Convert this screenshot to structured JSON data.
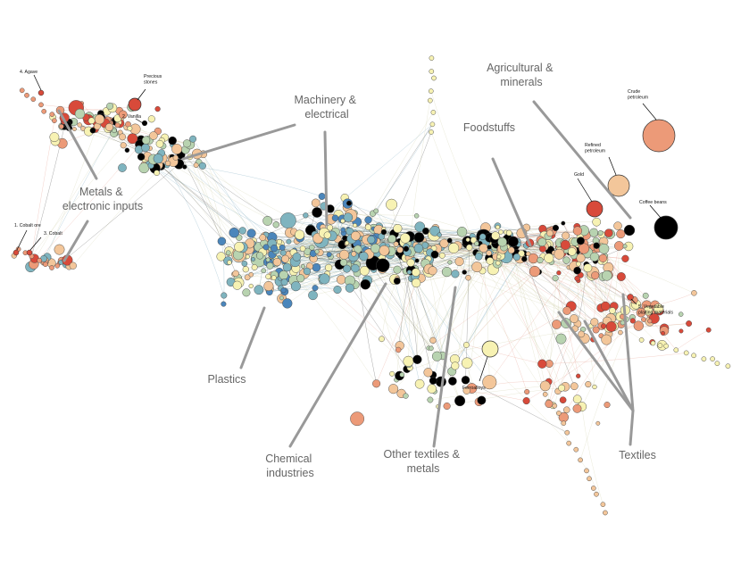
{
  "cluster_labels": {
    "machinery": [
      "Machinery &",
      "electrical"
    ],
    "agricultural": [
      "Agricultural &",
      "minerals"
    ],
    "foodstuffs": [
      "Foodstuffs"
    ],
    "metals": [
      "Metals &",
      "electronic inputs"
    ],
    "plastics": [
      "Plastics"
    ],
    "chemical": [
      "Chemical",
      "industries"
    ],
    "other_textiles": [
      "Other textiles &",
      "metals"
    ],
    "textiles": [
      "Textiles"
    ]
  },
  "node_labels": {
    "agave": "4. Agave",
    "precious_stones": [
      "Precious",
      "stones"
    ],
    "vanilla": "2. Vanilla",
    "crude_petroleum": [
      "Crude",
      "petroleum"
    ],
    "refined_petroleum": [
      "Refined",
      "petroleum"
    ],
    "gold": "Gold",
    "coffee_beans": "Coffee beans",
    "cobalt_ore": "1. Cobalt ore",
    "cobalt": "3. Cobalt",
    "vegetable_plaiting": [
      "5. Vegetable",
      "plaiting materials"
    ],
    "ferroalloys": "Ferroalloys"
  },
  "colors": {
    "black": "#000000",
    "red": "#d84a3a",
    "salmon": "#ec9a78",
    "peach": "#f3c69a",
    "cream": "#f7f2b3",
    "sage": "#b8d3b0",
    "teal": "#7fb4bf",
    "blue": "#4b86bb",
    "pointer": "#999999"
  },
  "icons": {
    "network": "product-space-network"
  }
}
